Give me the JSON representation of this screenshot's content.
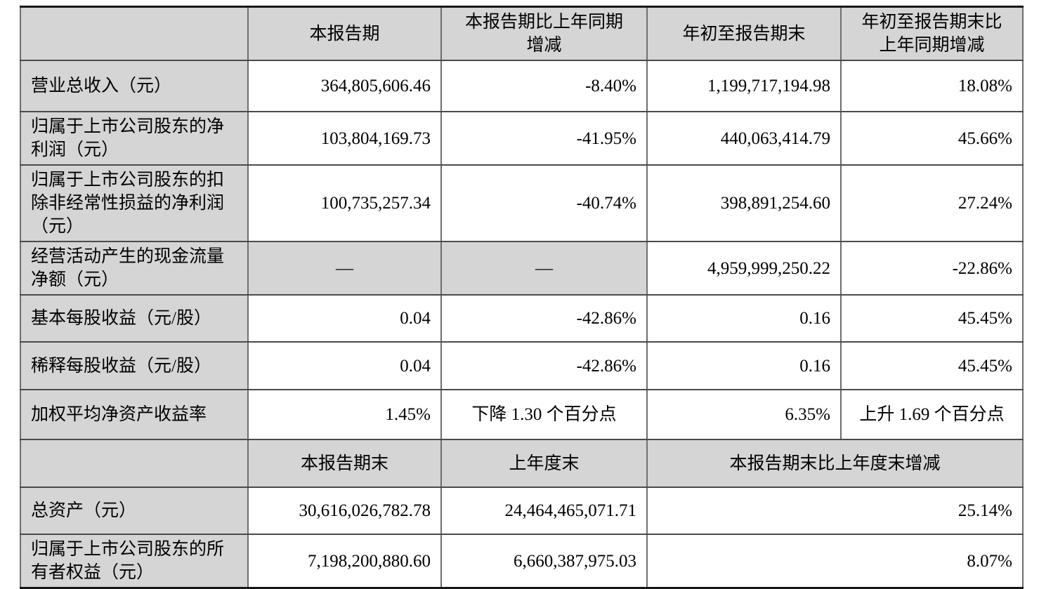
{
  "colors": {
    "shaded_cell_bg": "#d5d5d5",
    "inner_border": "#4a4a4a",
    "outer_rule": "#161616",
    "text": "#000000"
  },
  "table": {
    "rows": [
      {
        "kind": "header",
        "cells": [
          {
            "text": "",
            "align": "center",
            "shaded": true
          },
          {
            "text": "本报告期",
            "align": "center",
            "shaded": true
          },
          {
            "text": "本报告期比上年同期\n增减",
            "align": "center",
            "shaded": true
          },
          {
            "text": "年初至报告期末",
            "align": "center",
            "shaded": true
          },
          {
            "text": "年初至报告期末比\n上年同期增减",
            "align": "center",
            "shaded": true
          }
        ]
      },
      {
        "kind": "data",
        "cells": [
          {
            "text": "营业总收入（元）",
            "align": "left",
            "shaded": true
          },
          {
            "text": "364,805,606.46",
            "align": "right"
          },
          {
            "text": "-8.40%",
            "align": "right"
          },
          {
            "text": "1,199,717,194.98",
            "align": "right"
          },
          {
            "text": "18.08%",
            "align": "right"
          }
        ]
      },
      {
        "kind": "data",
        "cells": [
          {
            "text": "归属于上市公司股东的净利润（元）",
            "align": "left",
            "shaded": true
          },
          {
            "text": "103,804,169.73",
            "align": "right"
          },
          {
            "text": "-41.95%",
            "align": "right"
          },
          {
            "text": "440,063,414.79",
            "align": "right"
          },
          {
            "text": "45.66%",
            "align": "right"
          }
        ]
      },
      {
        "kind": "data",
        "cells": [
          {
            "text": "归属于上市公司股东的扣除非经常性损益的净利润（元）",
            "align": "left",
            "shaded": true
          },
          {
            "text": "100,735,257.34",
            "align": "right"
          },
          {
            "text": "-40.74%",
            "align": "right"
          },
          {
            "text": "398,891,254.60",
            "align": "right"
          },
          {
            "text": "27.24%",
            "align": "right"
          }
        ]
      },
      {
        "kind": "data",
        "cells": [
          {
            "text": "经营活动产生的现金流量净额（元）",
            "align": "left",
            "shaded": true
          },
          {
            "text": "—",
            "align": "center",
            "shaded": true
          },
          {
            "text": "—",
            "align": "center",
            "shaded": true
          },
          {
            "text": "4,959,999,250.22",
            "align": "right"
          },
          {
            "text": "-22.86%",
            "align": "right"
          }
        ]
      },
      {
        "kind": "data",
        "cells": [
          {
            "text": "基本每股收益（元/股）",
            "align": "left",
            "shaded": true
          },
          {
            "text": "0.04",
            "align": "right"
          },
          {
            "text": "-42.86%",
            "align": "right"
          },
          {
            "text": "0.16",
            "align": "right"
          },
          {
            "text": "45.45%",
            "align": "right"
          }
        ]
      },
      {
        "kind": "data",
        "cells": [
          {
            "text": "稀释每股收益（元/股）",
            "align": "left",
            "shaded": true
          },
          {
            "text": "0.04",
            "align": "right"
          },
          {
            "text": "-42.86%",
            "align": "right"
          },
          {
            "text": "0.16",
            "align": "right"
          },
          {
            "text": "45.45%",
            "align": "right"
          }
        ]
      },
      {
        "kind": "data",
        "cells": [
          {
            "text": "加权平均净资产收益率",
            "align": "left",
            "shaded": true
          },
          {
            "text": "1.45%",
            "align": "right"
          },
          {
            "text": "下降 1.30 个百分点",
            "align": "center"
          },
          {
            "text": "6.35%",
            "align": "right"
          },
          {
            "text": "上升 1.69 个百分点",
            "align": "center"
          }
        ]
      },
      {
        "kind": "header",
        "cells": [
          {
            "text": "",
            "align": "center",
            "shaded": true
          },
          {
            "text": "本报告期末",
            "align": "center",
            "shaded": true
          },
          {
            "text": "上年度末",
            "align": "center",
            "shaded": true
          },
          {
            "text": "本报告期末比上年度末增减",
            "align": "center",
            "shaded": true,
            "colspan": 2
          }
        ]
      },
      {
        "kind": "data",
        "cells": [
          {
            "text": "总资产（元）",
            "align": "left",
            "shaded": true
          },
          {
            "text": "30,616,026,782.78",
            "align": "right"
          },
          {
            "text": "24,464,465,071.71",
            "align": "right"
          },
          {
            "text": "25.14%",
            "align": "right",
            "colspan": 2
          }
        ]
      },
      {
        "kind": "data",
        "cells": [
          {
            "text": "归属于上市公司股东的所有者权益（元）",
            "align": "left",
            "shaded": true
          },
          {
            "text": "7,198,200,880.60",
            "align": "right"
          },
          {
            "text": "6,660,387,975.03",
            "align": "right"
          },
          {
            "text": "8.07%",
            "align": "right",
            "colspan": 2
          }
        ]
      }
    ]
  }
}
